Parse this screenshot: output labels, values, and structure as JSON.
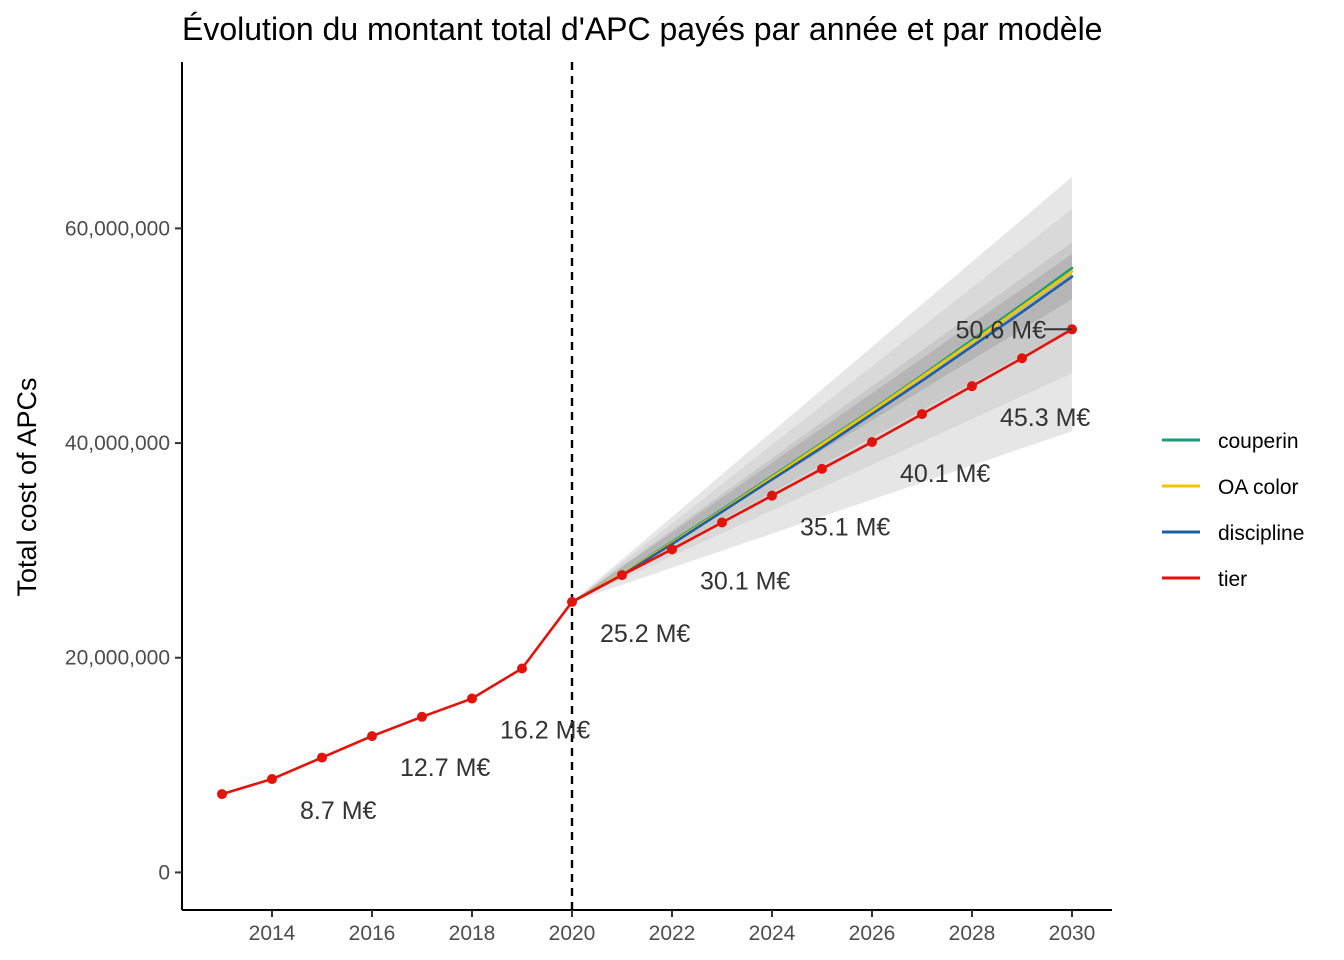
{
  "chart_data": {
    "type": "line",
    "title": "Évolution du montant total d'APC payés par année et par modèle",
    "xlabel": "",
    "ylabel": "Total cost of APCs",
    "xlim": [
      2012.2,
      2030.8
    ],
    "ylim": [
      -3500000,
      75500000
    ],
    "x_ticks": [
      2014,
      2016,
      2018,
      2020,
      2022,
      2024,
      2026,
      2028,
      2030
    ],
    "x_tick_labels": [
      "2014",
      "2016",
      "2018",
      "2020",
      "2022",
      "2024",
      "2026",
      "2028",
      "2030"
    ],
    "y_ticks": [
      0,
      20000000,
      40000000,
      60000000
    ],
    "y_tick_labels": [
      "0",
      "20,000,000",
      "40,000,000",
      "60,000,000"
    ],
    "grid": false,
    "legend_position": "right",
    "reference_line": {
      "x": 2020,
      "style": "dashed"
    },
    "series": [
      {
        "name": "couperin",
        "color": "#1a9e77",
        "x": [
          2020,
          2021,
          2022,
          2023,
          2024,
          2025,
          2026,
          2027,
          2028,
          2029,
          2030
        ],
        "values": [
          25200000,
          27800000,
          30800000,
          33800000,
          36900000,
          40000000,
          43100000,
          46300000,
          49600000,
          52900000,
          56300000
        ]
      },
      {
        "name": "OA color",
        "color": "#f2c500",
        "x": [
          2020,
          2021,
          2022,
          2023,
          2024,
          2025,
          2026,
          2027,
          2028,
          2029,
          2030
        ],
        "values": [
          25200000,
          27800000,
          30700000,
          33700000,
          36800000,
          39900000,
          43000000,
          46200000,
          49400000,
          52700000,
          56000000
        ]
      },
      {
        "name": "discipline",
        "color": "#1f5fa8",
        "x": [
          2020,
          2021,
          2022,
          2023,
          2024,
          2025,
          2026,
          2027,
          2028,
          2029,
          2030
        ],
        "values": [
          25200000,
          27700000,
          30600000,
          33600000,
          36600000,
          39600000,
          42700000,
          45800000,
          49000000,
          52200000,
          55500000
        ]
      },
      {
        "name": "tier",
        "color": "#e3120b",
        "x": [
          2013,
          2014,
          2015,
          2016,
          2017,
          2018,
          2019,
          2020,
          2021,
          2022,
          2023,
          2024,
          2025,
          2026,
          2027,
          2028,
          2029,
          2030
        ],
        "values": [
          7300000,
          8700000,
          10700000,
          12700000,
          14500000,
          16200000,
          19000000,
          25200000,
          27700000,
          30100000,
          32600000,
          35100000,
          37600000,
          40100000,
          42700000,
          45300000,
          47900000,
          50600000
        ]
      }
    ],
    "bands": [
      {
        "level": "outer",
        "color": "#e6e6e6",
        "x": [
          2020,
          2030
        ],
        "lower": [
          25200000,
          41100000
        ],
        "upper": [
          25200000,
          64800000
        ]
      },
      {
        "level": "middle",
        "color": "#d9d9d9",
        "x": [
          2020,
          2030
        ],
        "lower": [
          25200000,
          46500000
        ],
        "upper": [
          25200000,
          61800000
        ]
      },
      {
        "level": "inner",
        "color": "#c9c9c9",
        "x": [
          2020,
          2030
        ],
        "lower": [
          25200000,
          50700000
        ],
        "upper": [
          25200000,
          58700000
        ]
      },
      {
        "level": "core",
        "color": "#b5b5b5",
        "x": [
          2020,
          2030
        ],
        "lower": [
          25200000,
          53400000
        ],
        "upper": [
          25200000,
          57600000
        ]
      }
    ],
    "annotations": [
      {
        "text": "8.7 M€",
        "x": 2014,
        "y": 8700000,
        "anchor": "below-right"
      },
      {
        "text": "12.7 M€",
        "x": 2016,
        "y": 12700000,
        "anchor": "below-right"
      },
      {
        "text": "16.2 M€",
        "x": 2018,
        "y": 16200000,
        "anchor": "below-right"
      },
      {
        "text": "25.2 M€",
        "x": 2020,
        "y": 25200000,
        "anchor": "below-right"
      },
      {
        "text": "30.1 M€",
        "x": 2022,
        "y": 30100000,
        "anchor": "below-right"
      },
      {
        "text": "35.1 M€",
        "x": 2024,
        "y": 35100000,
        "anchor": "below-right"
      },
      {
        "text": "40.1 M€",
        "x": 2026,
        "y": 40100000,
        "anchor": "below-right"
      },
      {
        "text": "45.3 M€",
        "x": 2028,
        "y": 45300000,
        "anchor": "below-right"
      },
      {
        "text": "50.6 M€",
        "x": 2030,
        "y": 50600000,
        "anchor": "left-leader"
      }
    ]
  }
}
